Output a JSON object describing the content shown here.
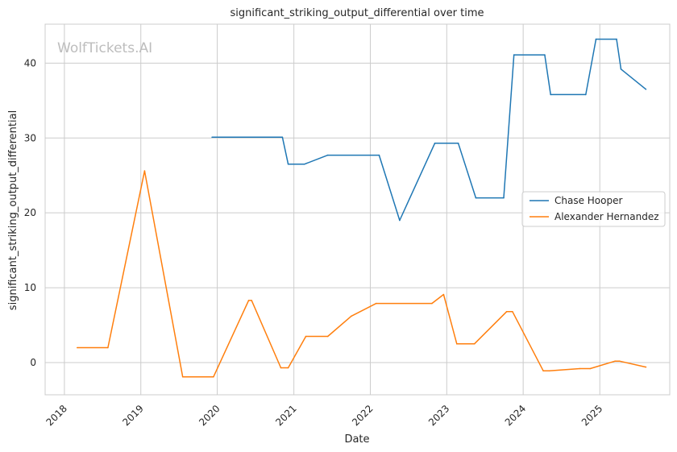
{
  "chart_data": {
    "type": "line",
    "title": "significant_striking_output_differential over time",
    "xlabel": "Date",
    "ylabel": "significant_striking_output_differential",
    "watermark": "WolfTickets.AI",
    "x_tick_labels": [
      "2018",
      "2019",
      "2020",
      "2021",
      "2022",
      "2023",
      "2024",
      "2025"
    ],
    "y_ticks": [
      0,
      10,
      20,
      30,
      40
    ],
    "xlim": [
      "2017-10-01",
      "2025-12-01"
    ],
    "ylim": [
      -4.3,
      45.2
    ],
    "grid": true,
    "legend_position": "center-right",
    "series": [
      {
        "name": "Chase Hooper",
        "color": "#1f77b4",
        "points": [
          [
            "2019-12-07",
            30.1
          ],
          [
            "2020-11-07",
            30.1
          ],
          [
            "2020-12-05",
            26.5
          ],
          [
            "2021-02-20",
            26.5
          ],
          [
            "2021-06-12",
            27.7
          ],
          [
            "2022-02-12",
            27.7
          ],
          [
            "2022-05-21",
            19.0
          ],
          [
            "2022-11-05",
            29.3
          ],
          [
            "2023-02-25",
            29.3
          ],
          [
            "2023-05-20",
            22.0
          ],
          [
            "2023-09-30",
            22.0
          ],
          [
            "2023-11-18",
            41.1
          ],
          [
            "2024-04-13",
            41.1
          ],
          [
            "2024-05-11",
            35.8
          ],
          [
            "2024-10-26",
            35.8
          ],
          [
            "2024-12-14",
            43.2
          ],
          [
            "2025-03-22",
            43.2
          ],
          [
            "2025-04-12",
            39.2
          ],
          [
            "2025-08-09",
            36.5
          ]
        ]
      },
      {
        "name": "Alexander Hernandez",
        "color": "#ff7f0e",
        "points": [
          [
            "2018-03-03",
            2.0
          ],
          [
            "2018-07-28",
            2.0
          ],
          [
            "2019-01-19",
            25.6
          ],
          [
            "2019-07-20",
            -1.9
          ],
          [
            "2019-12-14",
            -1.9
          ],
          [
            "2020-05-30",
            8.3
          ],
          [
            "2020-06-13",
            8.3
          ],
          [
            "2020-10-31",
            -0.7
          ],
          [
            "2020-12-05",
            -0.7
          ],
          [
            "2021-02-27",
            3.5
          ],
          [
            "2021-06-12",
            3.5
          ],
          [
            "2021-10-02",
            6.2
          ],
          [
            "2022-01-29",
            7.9
          ],
          [
            "2022-10-22",
            7.9
          ],
          [
            "2022-12-17",
            9.1
          ],
          [
            "2023-02-18",
            2.5
          ],
          [
            "2023-05-13",
            2.5
          ],
          [
            "2023-10-14",
            6.8
          ],
          [
            "2023-11-11",
            6.8
          ],
          [
            "2024-04-06",
            -1.1
          ],
          [
            "2024-05-04",
            -1.1
          ],
          [
            "2024-09-28",
            -0.8
          ],
          [
            "2024-11-16",
            -0.8
          ],
          [
            "2025-03-15",
            0.2
          ],
          [
            "2025-04-05",
            0.2
          ],
          [
            "2025-08-09",
            -0.6
          ]
        ]
      }
    ]
  }
}
